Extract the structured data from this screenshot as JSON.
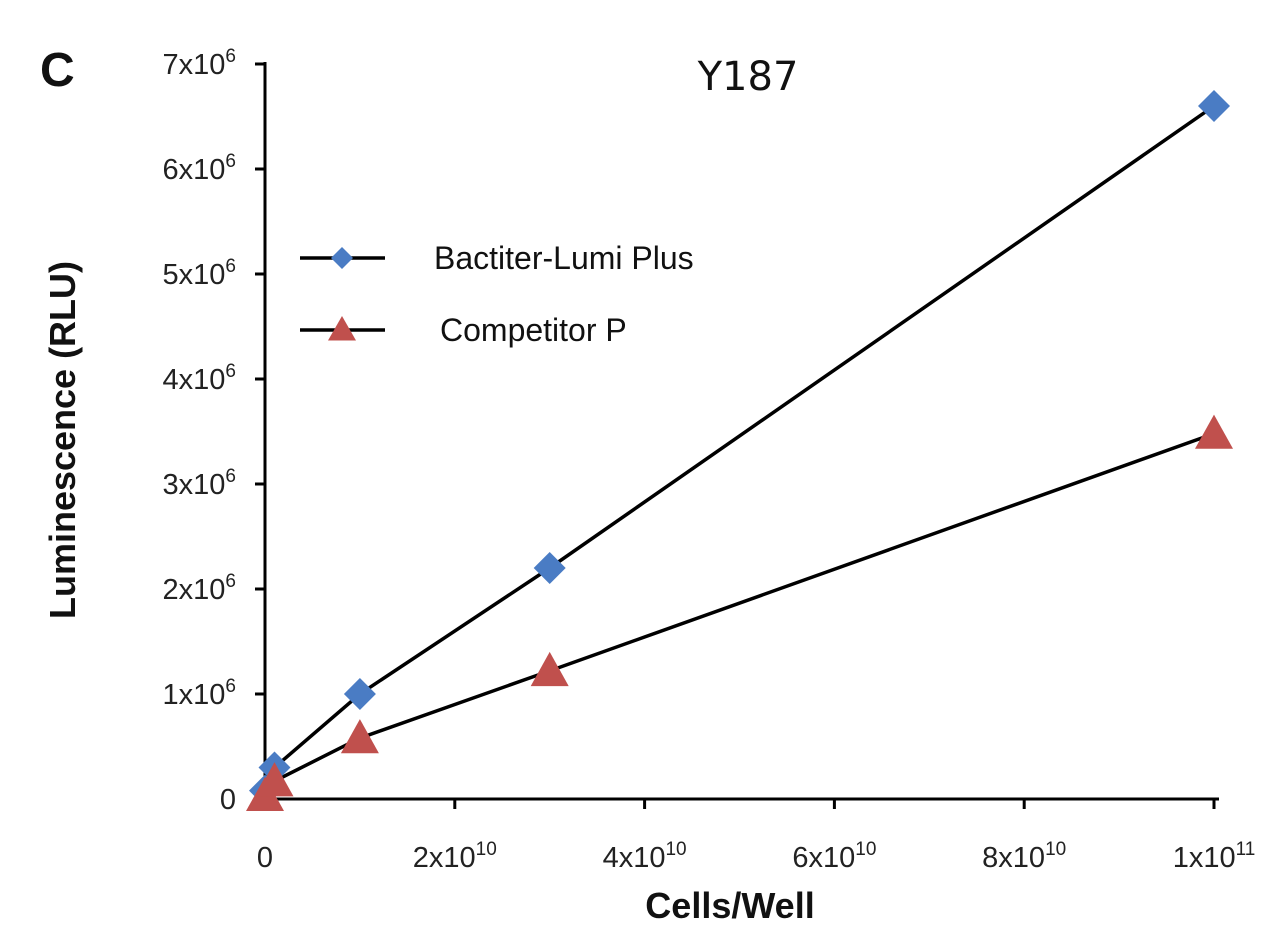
{
  "chart_data": {
    "type": "line",
    "panel_label": "C",
    "title": "Y187",
    "xlabel": "Cells/Well",
    "ylabel": "Luminescence (RLU)",
    "xlim": [
      0,
      100000000000
    ],
    "ylim": [
      0,
      7000000
    ],
    "x_ticks": [
      {
        "value": 0,
        "label": "0"
      },
      {
        "value": 20000000000,
        "base": "2x10",
        "exp": "10"
      },
      {
        "value": 40000000000,
        "base": "4x10",
        "exp": "10"
      },
      {
        "value": 60000000000,
        "base": "6x10",
        "exp": "10"
      },
      {
        "value": 80000000000,
        "base": "8x10",
        "exp": "10"
      },
      {
        "value": 100000000000,
        "base": "1x10",
        "exp": "11"
      }
    ],
    "y_ticks": [
      {
        "value": 0,
        "label": "0"
      },
      {
        "value": 1000000,
        "base": "1x10",
        "exp": "6"
      },
      {
        "value": 2000000,
        "base": "2x10",
        "exp": "6"
      },
      {
        "value": 3000000,
        "base": "3x10",
        "exp": "6"
      },
      {
        "value": 4000000,
        "base": "4x10",
        "exp": "6"
      },
      {
        "value": 5000000,
        "base": "5x10",
        "exp": "6"
      },
      {
        "value": 6000000,
        "base": "6x10",
        "exp": "6"
      },
      {
        "value": 7000000,
        "base": "7x10",
        "exp": "6"
      }
    ],
    "legend_position": "upper-left",
    "series": [
      {
        "name": "Bactiter-Lumi Plus",
        "marker": "diamond",
        "color": "#4a7cc4",
        "x": [
          0,
          1000000000,
          10000000000,
          30000000000,
          100000000000
        ],
        "values": [
          80000,
          300000,
          1000000,
          2200000,
          6600000
        ]
      },
      {
        "name": "Competitor P",
        "marker": "triangle",
        "color": "#c0504d",
        "x": [
          0,
          1000000000,
          10000000000,
          30000000000,
          100000000000
        ],
        "values": [
          30000,
          170000,
          580000,
          1220000,
          3480000
        ]
      }
    ]
  }
}
